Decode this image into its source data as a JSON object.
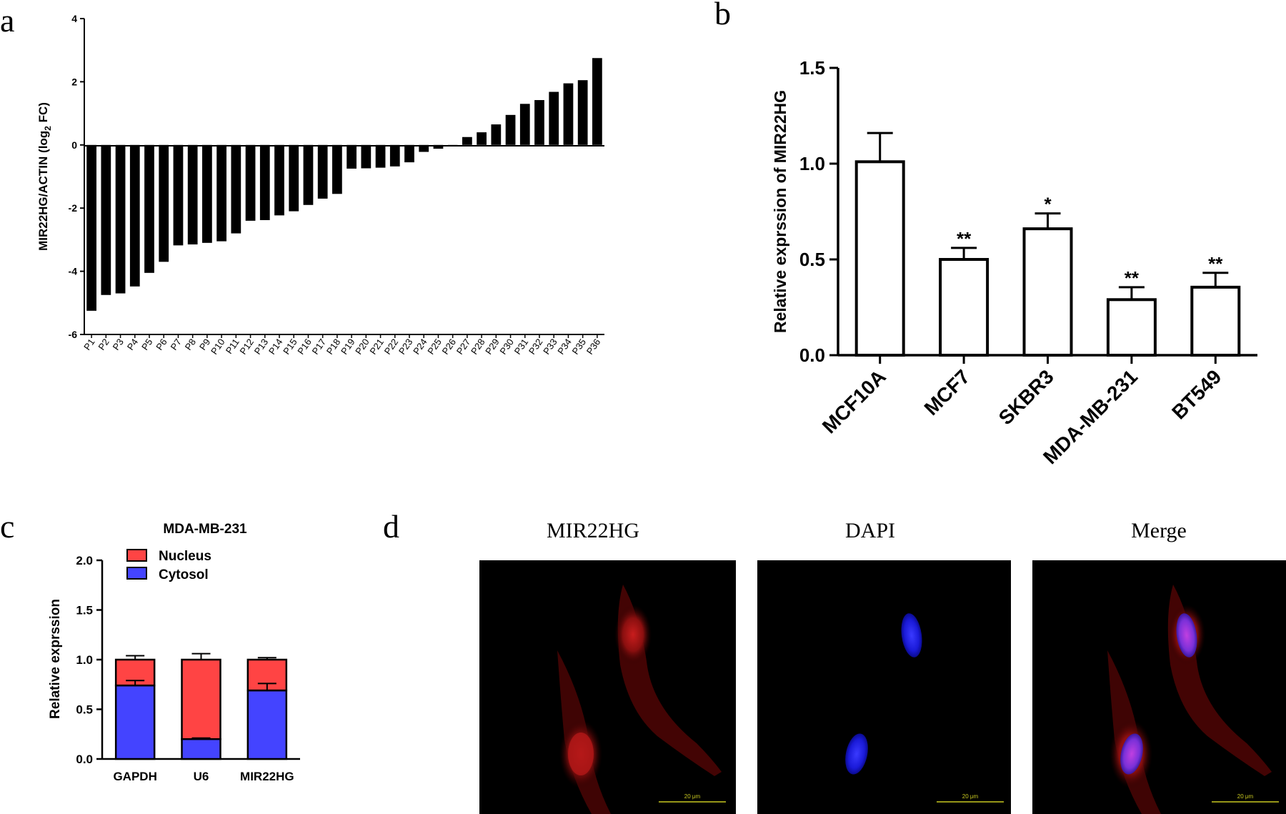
{
  "chart_data": [
    {
      "panel": "a",
      "type": "bar",
      "ylabel": "MIR22HG/ACTIN (log",
      "ylabel_sub": "2",
      "ylabel_end": " FC)",
      "ylim": [
        -6,
        4
      ],
      "yticks": [
        "4",
        "2",
        "0",
        "-2",
        "-4",
        "-6"
      ],
      "categories": [
        "P1",
        "P2",
        "P3",
        "P4",
        "P5",
        "P6",
        "P7",
        "P8",
        "P9",
        "P10",
        "P11",
        "P12",
        "P13",
        "P14",
        "P15",
        "P16",
        "P17",
        "P18",
        "P19",
        "P20",
        "P21",
        "P22",
        "P23",
        "P24",
        "P25",
        "P26",
        "P27",
        "P28",
        "P29",
        "P30",
        "P31",
        "P32",
        "P33",
        "P34",
        "P35",
        "P36"
      ],
      "values": [
        -5.25,
        -4.75,
        -4.7,
        -4.48,
        -4.05,
        -3.7,
        -3.18,
        -3.15,
        -3.1,
        -3.05,
        -2.8,
        -2.4,
        -2.38,
        -2.23,
        -2.1,
        -1.9,
        -1.7,
        -1.55,
        -0.75,
        -0.74,
        -0.72,
        -0.68,
        -0.55,
        -0.22,
        -0.12,
        -0.04,
        0.25,
        0.4,
        0.65,
        0.95,
        1.3,
        1.42,
        1.68,
        1.95,
        2.05,
        2.75
      ]
    },
    {
      "panel": "b",
      "type": "bar",
      "ylabel": "Relative exprssion of MIR22HG",
      "ylim": [
        0,
        1.5
      ],
      "yticks": [
        "0.0",
        "0.5",
        "1.0",
        "1.5"
      ],
      "categories": [
        "MCF10A",
        "MCF7",
        "SKBR3",
        "MDA-MB-231",
        "BT549"
      ],
      "values": [
        1.01,
        0.5,
        0.66,
        0.29,
        0.355
      ],
      "errors": [
        0.15,
        0.06,
        0.08,
        0.065,
        0.075
      ],
      "significance": [
        "",
        "**",
        "*",
        "**",
        "**"
      ]
    },
    {
      "panel": "c",
      "type": "bar",
      "title": "MDA-MB-231",
      "ylabel": "Relative exprssion",
      "ylim": [
        0,
        2.0
      ],
      "yticks": [
        "0.0",
        "0.5",
        "1.0",
        "1.5",
        "2.0"
      ],
      "categories": [
        "GAPDH",
        "U6",
        "MIR22HG"
      ],
      "series": [
        {
          "name": "Nucleus",
          "color": "#ff4444",
          "values": [
            0.26,
            0.8,
            0.31
          ],
          "errors": [
            0.04,
            0.06,
            0.02
          ]
        },
        {
          "name": "Cytosol",
          "color": "#4444ff",
          "values": [
            0.74,
            0.2,
            0.69
          ],
          "errors": [
            0.05,
            0.01,
            0.07
          ]
        }
      ]
    }
  ],
  "panel_labels": {
    "a": "a",
    "b": "b",
    "c": "c",
    "d": "d"
  },
  "micrographs": {
    "titles": [
      "MIR22HG",
      "DAPI",
      "Merge"
    ],
    "scale_bar": "20 μm"
  }
}
